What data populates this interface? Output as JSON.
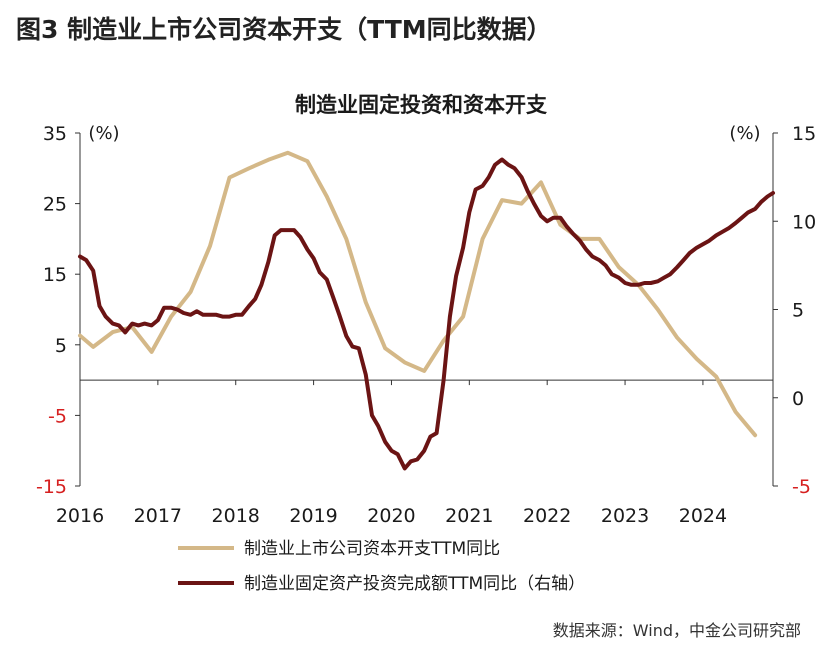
{
  "figure_label": "图3  制造业上市公司资本开支（TTM同比数据）",
  "source": "数据来源：Wind，中金公司研究部",
  "colors": {
    "series1": "#d4b888",
    "series2": "#6b1414",
    "negative_tick": "#d62020",
    "axis": "#333333"
  },
  "chart_data": {
    "type": "line",
    "title": "制造业固定投资和资本开支",
    "left_axis": {
      "unit": "(%)",
      "ylim": [
        -15,
        35
      ],
      "ticks": [
        35,
        25,
        15,
        5,
        -5,
        -15
      ]
    },
    "right_axis": {
      "unit": "(%)",
      "ylim": [
        -5,
        15
      ],
      "ticks": [
        15,
        10,
        5,
        0,
        -5
      ]
    },
    "x_ticks": [
      "2016",
      "2017",
      "2018",
      "2019",
      "2020",
      "2021",
      "2022",
      "2023",
      "2024"
    ],
    "x_range": [
      2016.0,
      2024.9
    ],
    "grid": false,
    "legend_position": "bottom",
    "series": [
      {
        "name": "制造业上市公司资本开支TTM同比",
        "axis": "left",
        "x": [
          2016.0,
          2016.17,
          2016.42,
          2016.67,
          2016.92,
          2017.17,
          2017.42,
          2017.67,
          2017.92,
          2018.17,
          2018.42,
          2018.67,
          2018.92,
          2019.17,
          2019.42,
          2019.67,
          2019.92,
          2020.17,
          2020.42,
          2020.67,
          2020.92,
          2021.17,
          2021.42,
          2021.67,
          2021.92,
          2022.17,
          2022.42,
          2022.67,
          2022.92,
          2023.17,
          2023.42,
          2023.67,
          2023.92,
          2024.17,
          2024.42,
          2024.67
        ],
        "values": [
          6.3,
          4.7,
          6.8,
          7.5,
          4.0,
          9.0,
          12.5,
          19.0,
          28.7,
          30.0,
          31.2,
          32.2,
          31.0,
          26.0,
          20.0,
          11.0,
          4.5,
          2.5,
          1.3,
          5.6,
          9.0,
          20.0,
          25.5,
          25.0,
          28.0,
          22.0,
          20.0,
          20.0,
          16.0,
          13.5,
          10.0,
          6.0,
          3.0,
          0.5,
          -4.5,
          -7.8
        ]
      },
      {
        "name": "制造业固定资产投资完成额TTM同比（右轴）",
        "axis": "right",
        "x": [
          2016.0,
          2016.08,
          2016.17,
          2016.25,
          2016.33,
          2016.42,
          2016.5,
          2016.58,
          2016.67,
          2016.75,
          2016.83,
          2016.92,
          2017.0,
          2017.08,
          2017.17,
          2017.25,
          2017.33,
          2017.42,
          2017.5,
          2017.58,
          2017.67,
          2017.75,
          2017.83,
          2017.92,
          2018.0,
          2018.08,
          2018.17,
          2018.25,
          2018.33,
          2018.42,
          2018.5,
          2018.58,
          2018.67,
          2018.75,
          2018.83,
          2018.92,
          2019.0,
          2019.08,
          2019.17,
          2019.25,
          2019.33,
          2019.42,
          2019.5,
          2019.58,
          2019.67,
          2019.75,
          2019.83,
          2019.92,
          2020.0,
          2020.08,
          2020.17,
          2020.25,
          2020.33,
          2020.42,
          2020.5,
          2020.58,
          2020.67,
          2020.75,
          2020.83,
          2020.92,
          2021.0,
          2021.08,
          2021.17,
          2021.25,
          2021.33,
          2021.42,
          2021.5,
          2021.58,
          2021.67,
          2021.75,
          2021.83,
          2021.92,
          2022.0,
          2022.08,
          2022.17,
          2022.25,
          2022.33,
          2022.42,
          2022.5,
          2022.58,
          2022.67,
          2022.75,
          2022.83,
          2022.92,
          2023.0,
          2023.08,
          2023.17,
          2023.25,
          2023.33,
          2023.42,
          2023.5,
          2023.58,
          2023.67,
          2023.75,
          2023.83,
          2023.92,
          2024.0,
          2024.08,
          2024.17,
          2024.25,
          2024.33,
          2024.42,
          2024.5,
          2024.58,
          2024.67,
          2024.75,
          2024.83,
          2024.9
        ],
        "values": [
          8.0,
          7.8,
          7.2,
          5.2,
          4.6,
          4.2,
          4.1,
          3.7,
          4.2,
          4.1,
          4.2,
          4.1,
          4.4,
          5.1,
          5.1,
          5.0,
          4.8,
          4.7,
          4.9,
          4.7,
          4.7,
          4.7,
          4.6,
          4.6,
          4.7,
          4.7,
          5.2,
          5.6,
          6.4,
          7.7,
          9.2,
          9.5,
          9.5,
          9.5,
          9.1,
          8.4,
          7.9,
          7.1,
          6.7,
          5.7,
          4.7,
          3.5,
          2.9,
          2.8,
          1.3,
          -1.0,
          -1.6,
          -2.5,
          -3.0,
          -3.2,
          -4.0,
          -3.6,
          -3.5,
          -3.0,
          -2.2,
          -2.0,
          1.0,
          4.6,
          6.9,
          8.5,
          10.5,
          11.8,
          12.0,
          12.5,
          13.2,
          13.5,
          13.2,
          13.0,
          12.5,
          11.7,
          11.0,
          10.3,
          10.0,
          10.2,
          10.2,
          9.7,
          9.3,
          8.9,
          8.4,
          8.0,
          7.8,
          7.5,
          7.0,
          6.8,
          6.5,
          6.4,
          6.4,
          6.5,
          6.5,
          6.6,
          6.8,
          7.0,
          7.4,
          7.8,
          8.2,
          8.5,
          8.7,
          8.9,
          9.2,
          9.4,
          9.6,
          9.9,
          10.2,
          10.5,
          10.7,
          11.1,
          11.4,
          11.6
        ]
      }
    ]
  }
}
